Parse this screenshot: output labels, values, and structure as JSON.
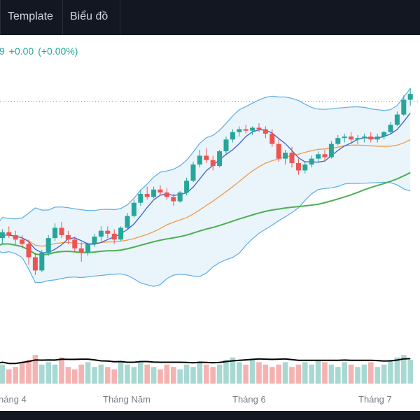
{
  "toolbar": {
    "tabs": [
      {
        "label": "Template"
      },
      {
        "label": "Biểu đồ"
      }
    ]
  },
  "legend": {
    "last_digit": "9",
    "change": "+0.00",
    "change_pct": "(+0.00%)"
  },
  "colors": {
    "up": "#26a69a",
    "down": "#ef5350",
    "bb_line": "#5aaee4",
    "bb_fill": "#eaf4fb",
    "ma_fast": "#3b5fd1",
    "ma_mid": "#f2994a",
    "ma_slow": "#4caf50",
    "vol_ma": "#000000",
    "dotted_line": "#26a69a"
  },
  "chart_data": {
    "type": "candlestick",
    "x_ticks": [
      "háng 4",
      "Tháng Năm",
      "Tháng 6",
      "Tháng 7"
    ],
    "ohlc": [
      [
        262,
        269,
        255,
        266
      ],
      [
        266,
        272,
        262,
        270
      ],
      [
        270,
        274,
        266,
        268
      ],
      [
        268,
        271,
        262,
        265
      ],
      [
        265,
        268,
        259,
        262
      ],
      [
        262,
        265,
        248,
        253
      ],
      [
        253,
        256,
        241,
        244
      ],
      [
        244,
        258,
        243,
        256
      ],
      [
        256,
        268,
        254,
        266
      ],
      [
        266,
        276,
        264,
        273
      ],
      [
        273,
        277,
        266,
        268
      ],
      [
        268,
        271,
        262,
        265
      ],
      [
        265,
        267,
        257,
        259
      ],
      [
        259,
        263,
        250,
        256
      ],
      [
        256,
        263,
        254,
        262
      ],
      [
        262,
        269,
        260,
        267
      ],
      [
        267,
        274,
        264,
        271
      ],
      [
        271,
        274,
        266,
        269
      ],
      [
        269,
        272,
        262,
        265
      ],
      [
        265,
        274,
        264,
        273
      ],
      [
        273,
        283,
        272,
        281
      ],
      [
        281,
        292,
        280,
        290
      ],
      [
        290,
        299,
        288,
        296
      ],
      [
        296,
        301,
        292,
        294
      ],
      [
        294,
        301,
        293,
        299
      ],
      [
        299,
        302,
        295,
        297
      ],
      [
        297,
        300,
        292,
        294
      ],
      [
        294,
        296,
        288,
        291
      ],
      [
        291,
        298,
        290,
        297
      ],
      [
        297,
        307,
        295,
        305
      ],
      [
        305,
        318,
        304,
        316
      ],
      [
        316,
        326,
        314,
        322
      ],
      [
        322,
        327,
        317,
        319
      ],
      [
        319,
        322,
        312,
        315
      ],
      [
        315,
        326,
        314,
        325
      ],
      [
        325,
        335,
        323,
        333
      ],
      [
        333,
        340,
        331,
        338
      ],
      [
        338,
        342,
        335,
        340
      ],
      [
        340,
        343,
        337,
        339
      ],
      [
        339,
        342,
        336,
        341
      ],
      [
        341,
        344,
        338,
        340
      ],
      [
        340,
        342,
        334,
        337
      ],
      [
        337,
        340,
        328,
        330
      ],
      [
        330,
        333,
        318,
        320
      ],
      [
        320,
        326,
        316,
        324
      ],
      [
        324,
        328,
        314,
        317
      ],
      [
        317,
        320,
        309,
        312
      ],
      [
        312,
        318,
        310,
        316
      ],
      [
        316,
        322,
        314,
        320
      ],
      [
        320,
        325,
        318,
        323
      ],
      [
        323,
        326,
        318,
        321
      ],
      [
        321,
        332,
        320,
        330
      ],
      [
        330,
        336,
        329,
        334
      ],
      [
        334,
        337,
        331,
        335
      ],
      [
        335,
        338,
        330,
        333
      ],
      [
        333,
        336,
        330,
        334
      ],
      [
        334,
        337,
        331,
        335
      ],
      [
        335,
        338,
        331,
        333
      ],
      [
        333,
        337,
        331,
        335
      ],
      [
        335,
        339,
        333,
        338
      ],
      [
        338,
        345,
        337,
        343
      ],
      [
        343,
        352,
        342,
        350
      ],
      [
        350,
        363,
        349,
        360
      ],
      [
        360,
        368,
        356,
        364
      ]
    ],
    "volume": [
      7,
      8,
      6,
      7,
      9,
      10,
      12,
      8,
      9,
      8,
      11,
      7,
      6,
      8,
      9,
      7,
      8,
      7,
      6,
      9,
      8,
      7,
      9,
      8,
      7,
      6,
      8,
      7,
      6,
      8,
      7,
      9,
      8,
      7,
      8,
      10,
      11,
      9,
      8,
      10,
      9,
      8,
      7,
      8,
      9,
      7,
      8,
      9,
      8,
      10,
      9,
      8,
      7,
      9,
      8,
      7,
      8,
      9,
      7,
      8,
      10,
      11,
      12,
      10
    ],
    "y_range": [
      228,
      385
    ]
  }
}
